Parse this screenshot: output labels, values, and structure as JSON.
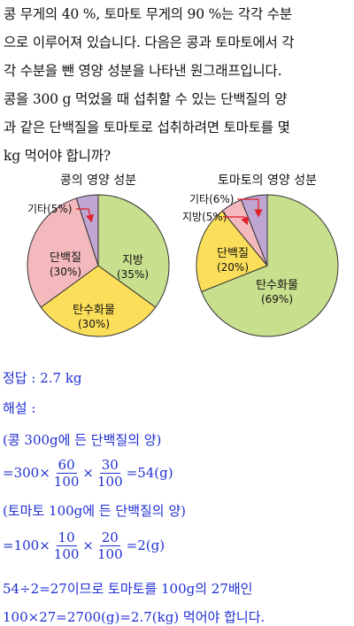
{
  "problem": {
    "lines": [
      "콩 무게의 40 %, 토마토 무게의 90 %는 각각 수분",
      "으로 이루어져 있습니다. 다음은 콩과 토마토에서 각",
      "각 수분을 뺀 영양 성분을 나타낸 원그래프입니다.",
      "콩을 300 g 먹었을 때 섭취할 수 있는 단백질의 양",
      "과 같은 단백질을 토마토로 섭취하려면 토마토를 몇",
      "kg 먹어야 합니까?"
    ]
  },
  "chart_data": [
    {
      "type": "pie",
      "title": "콩의 영양 성분",
      "slices": [
        {
          "label": "지방",
          "value": 35,
          "value_label": "(35%)",
          "color": "#c8df8e"
        },
        {
          "label": "탄수화물",
          "value": 30,
          "value_label": "(30%)",
          "color": "#fbde5a"
        },
        {
          "label": "단백질",
          "value": 30,
          "value_label": "(30%)",
          "color": "#f4b9bd"
        },
        {
          "label": "기타",
          "value": 5,
          "value_label": "(5%)",
          "color": "#bfa6d2",
          "external_label": "기타(5%)"
        }
      ]
    },
    {
      "type": "pie",
      "title": "토마토의 영양 성분",
      "slices": [
        {
          "label": "탄수화물",
          "value": 69,
          "value_label": "(69%)",
          "color": "#c8df8e"
        },
        {
          "label": "단백질",
          "value": 20,
          "value_label": "(20%)",
          "color": "#fbde5a"
        },
        {
          "label": "지방",
          "value": 5,
          "value_label": "(5%)",
          "color": "#f4b9bd",
          "external_label": "지방(5%)"
        },
        {
          "label": "기타",
          "value": 6,
          "value_label": "(6%)",
          "color": "#bfa6d2",
          "external_label": "기타(6%)"
        }
      ]
    }
  ],
  "solution": {
    "answer": "정답 : 2.7 kg",
    "header": "해설 :",
    "line1": "(콩 300g에 든 단백질의 양)",
    "eq1": {
      "prefix": "=300×",
      "f1_num": "60",
      "f1_den": "100",
      "mid": "×",
      "f2_num": "30",
      "f2_den": "100",
      "result": "=54(g)"
    },
    "line2": "(토마토 100g에 든 단백질의 양)",
    "eq2": {
      "prefix": "=100×",
      "f1_num": "10",
      "f1_den": "100",
      "mid": "×",
      "f2_num": "20",
      "f2_den": "100",
      "result": "=2(g)"
    },
    "line3": "54÷2=27이므로 토마토를 100g의 27배인",
    "line4": "100×27=2700(g)=2.7(kg) 먹어야 합니다."
  },
  "colors": {
    "solution_text": "#1f2fd0",
    "arrow": "#e0202a"
  }
}
